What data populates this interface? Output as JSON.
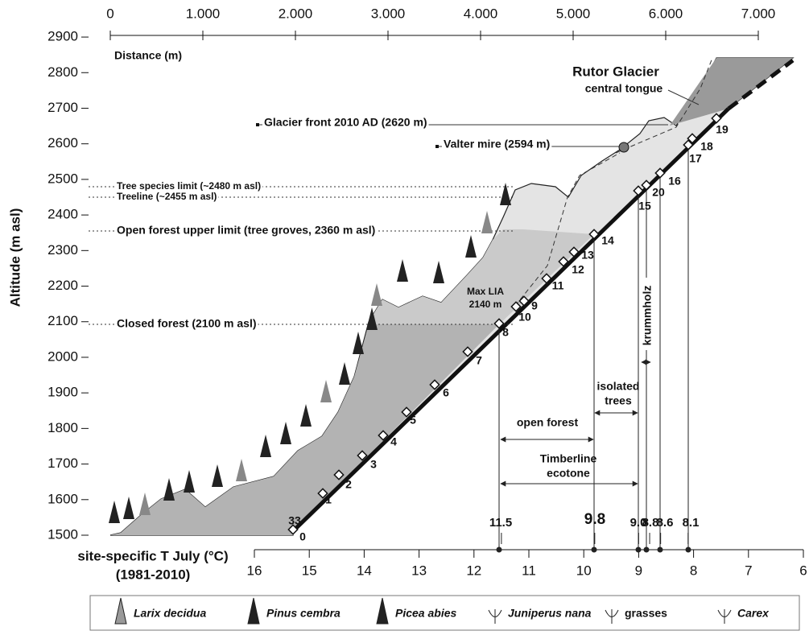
{
  "distance_axis": {
    "label": "Distance (m)",
    "ticks": [
      0,
      {
        "value": 1000,
        "label": "1.000"
      },
      {
        "value": 2000,
        "label": "2.000"
      },
      {
        "value": 3000,
        "label": "3.000"
      },
      {
        "value": 4000,
        "label": "4.000"
      },
      {
        "value": 5000,
        "label": "5.000"
      },
      {
        "value": 6000,
        "label": "6.000"
      },
      {
        "value": 7000,
        "label": "7.000"
      }
    ]
  },
  "altitude_axis": {
    "label": "Altitude (m asl)",
    "ticks": [
      1500,
      1600,
      1700,
      1800,
      1900,
      2000,
      2100,
      2200,
      2300,
      2400,
      2500,
      2600,
      2700,
      2800,
      2900
    ]
  },
  "temperature_axis": {
    "label": "site-specific T July (°C)",
    "period": "(1981-2010)",
    "ticks": [
      16,
      15,
      14,
      13,
      12,
      11,
      10,
      9,
      8,
      7,
      6
    ]
  },
  "limits": [
    "Tree species limit (~2480 m asl)",
    "Treeline (~2455 m asl)",
    "Open forest upper limit (tree groves, 2360 m asl)",
    "Closed forest (2100 m asl)"
  ],
  "glacier": {
    "name": "Rutor Glacier",
    "part": "central tongue"
  },
  "markers": [
    "Glacier front 2010 AD (2620 m)",
    "Valter mire (2594 m)"
  ],
  "max_lia": [
    "Max LIA",
    "2140 m"
  ],
  "sites": [
    0,
    33,
    1,
    2,
    3,
    4,
    5,
    6,
    7,
    8,
    10,
    9,
    11,
    12,
    13,
    14,
    15,
    20,
    16,
    17,
    18,
    19
  ],
  "site_temperatures": [
    11.5,
    9.8,
    {
      "value": 9,
      "label": "9.0"
    },
    8.8,
    8.6,
    8.1
  ],
  "zones": {
    "open_forest": "open forest",
    "isolated_trees": [
      "isolated",
      "trees"
    ],
    "timberline_ecotone": [
      "Timberline",
      "ecotone"
    ],
    "krummholz": "krummholz"
  },
  "legend": [
    "Larix decidua",
    "Pinus cembra",
    "Picea abies",
    "Juniperus nana",
    "grasses",
    "Carex"
  ]
}
